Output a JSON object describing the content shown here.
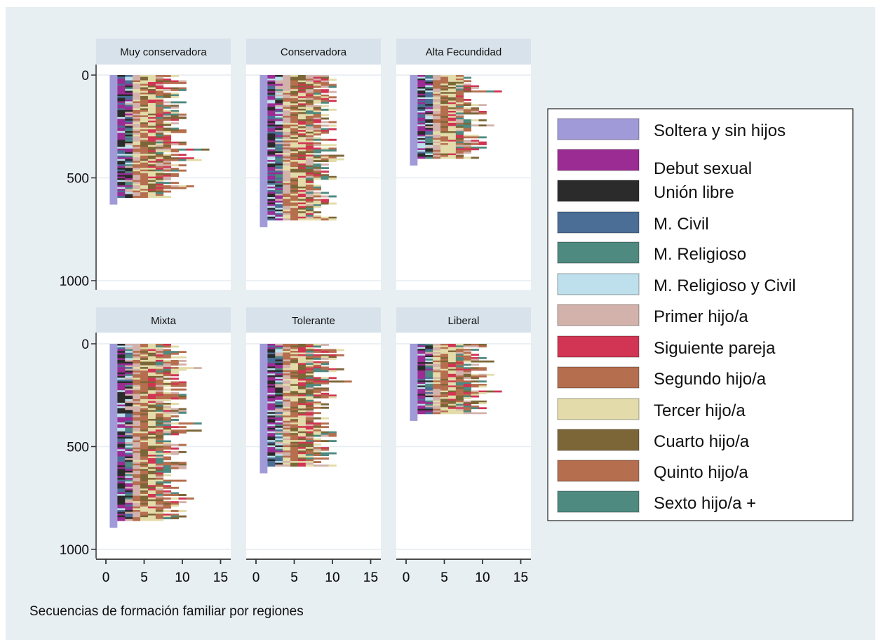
{
  "chart_data": {
    "type": "bar",
    "subtype": "sequence-index-plot",
    "note": "Secuencias de formación familiar por regiones",
    "xlim": [
      0,
      15
    ],
    "ylim": [
      0,
      1000
    ],
    "y_reversed": true,
    "x_ticks": [
      0,
      5,
      10,
      15
    ],
    "y_ticks": [
      0,
      500,
      1000
    ],
    "grid": true,
    "legend_position": "right",
    "colors": {
      "background": "#e8eff3",
      "panel": "#ffffff",
      "strip": "#d8e2ea",
      "gridline": "#e6ecf0"
    },
    "states": [
      {
        "name": "Soltera y sin hijos",
        "color": "#a09ad8"
      },
      {
        "name": "Debut sexual",
        "color": "#9b2c93"
      },
      {
        "name": "Unión libre",
        "color": "#2b2b2b"
      },
      {
        "name": "M. Civil",
        "color": "#4b6e96"
      },
      {
        "name": "M. Religioso",
        "color": "#4e8a80"
      },
      {
        "name": "M. Religioso y Civil",
        "color": "#bde0ec"
      },
      {
        "name": "Primer hijo/a",
        "color": "#d3b2ac"
      },
      {
        "name": "Siguiente pareja",
        "color": "#d13553"
      },
      {
        "name": "Segundo hijo/a",
        "color": "#b56e4e"
      },
      {
        "name": "Tercer hijo/a",
        "color": "#e3dcaa"
      },
      {
        "name": "Cuarto hijo/a",
        "color": "#7c6638"
      },
      {
        "name": "Quinto hijo/a",
        "color": "#b56e4e"
      },
      {
        "name": "Sexto hijo/a +",
        "color": "#4e8a80"
      }
    ],
    "panels": [
      {
        "title": "Muy conservadora",
        "n": 630
      },
      {
        "title": "Conservadora",
        "n": 740
      },
      {
        "title": "Alta Fecundidad",
        "n": 440
      },
      {
        "title": "Mixta",
        "n": 895
      },
      {
        "title": "Tolerante",
        "n": 630
      },
      {
        "title": "Liberal",
        "n": 375
      }
    ]
  }
}
